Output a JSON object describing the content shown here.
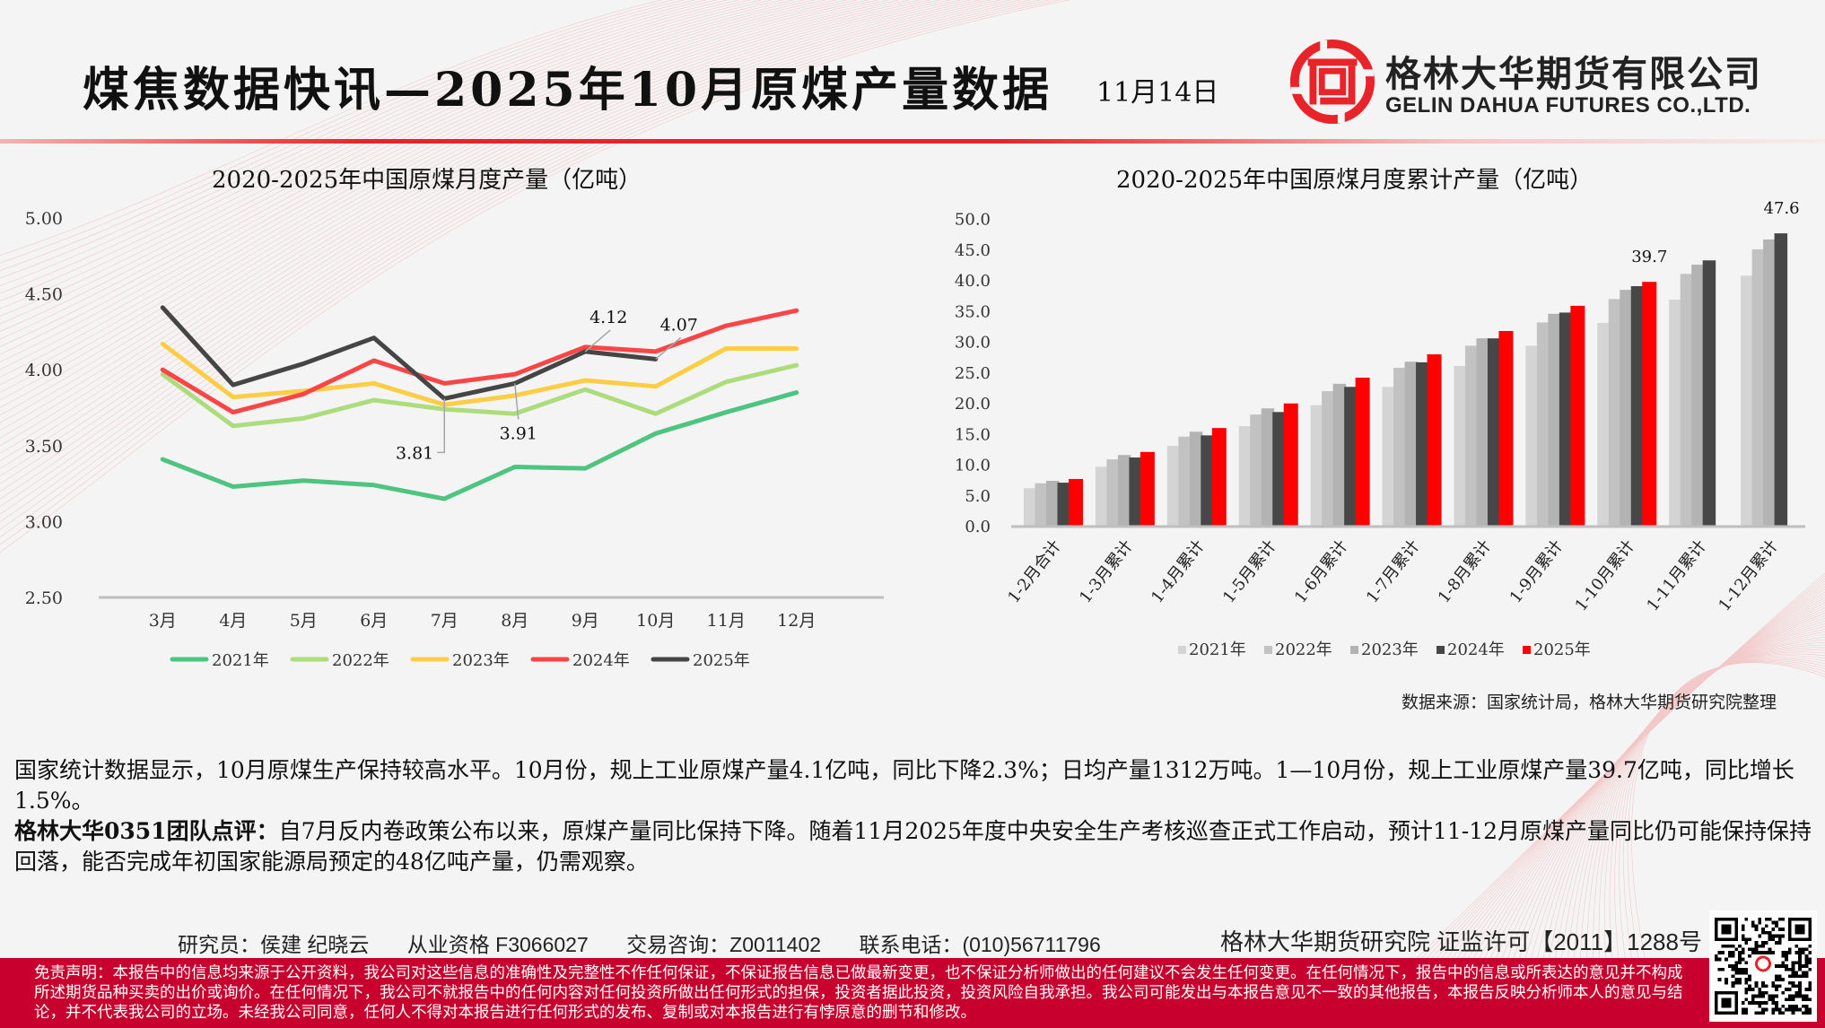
{
  "header": {
    "title": "煤焦数据快讯—2025年10月原煤产量数据",
    "date": "11月14日",
    "company_cn": "格林大华期货有限公司",
    "company_en": "GELIN DAHUA FUTURES CO.,LTD.",
    "brand_color": "#e8232a"
  },
  "chart_data": [
    {
      "type": "line",
      "title": "2020-2025年中国原煤月度产量（亿吨）",
      "xlabel": "",
      "ylabel": "",
      "ylim": [
        2.5,
        5.0
      ],
      "yticks": [
        "5.00",
        "4.50",
        "4.00",
        "3.50",
        "3.00",
        "2.50"
      ],
      "ytick_values": [
        5.0,
        4.5,
        4.0,
        3.5,
        3.0,
        2.5
      ],
      "categories": [
        "3月",
        "4月",
        "5月",
        "6月",
        "7月",
        "8月",
        "9月",
        "10月",
        "11月",
        "12月"
      ],
      "legend_position": "bottom",
      "grid": false,
      "series": [
        {
          "name": "2021年",
          "color": "#4dc47f",
          "values": [
            3.41,
            3.23,
            3.27,
            3.24,
            3.15,
            3.36,
            3.35,
            3.58,
            3.72,
            3.85
          ]
        },
        {
          "name": "2022年",
          "color": "#addc7c",
          "values": [
            3.97,
            3.63,
            3.68,
            3.8,
            3.74,
            3.71,
            3.87,
            3.71,
            3.92,
            4.03
          ]
        },
        {
          "name": "2023年",
          "color": "#fdcd46",
          "values": [
            4.17,
            3.82,
            3.86,
            3.91,
            3.77,
            3.83,
            3.93,
            3.89,
            4.14,
            4.14
          ]
        },
        {
          "name": "2024年",
          "color": "#f94545",
          "values": [
            4.0,
            3.72,
            3.84,
            4.06,
            3.91,
            3.97,
            4.15,
            4.12,
            4.29,
            4.39
          ]
        },
        {
          "name": "2025年",
          "color": "#454545",
          "values": [
            4.41,
            3.9,
            4.04,
            4.21,
            3.81,
            3.91,
            4.12,
            4.07,
            null,
            null
          ]
        }
      ],
      "annotations": [
        {
          "series": "2025年",
          "category": "7月",
          "text": "3.81"
        },
        {
          "series": "2025年",
          "category": "8月",
          "text": "3.91"
        },
        {
          "series": "2025年",
          "category": "9月",
          "text": "4.12"
        },
        {
          "series": "2025年",
          "category": "10月",
          "text": "4.07"
        }
      ]
    },
    {
      "type": "bar",
      "title": "2020-2025年中国原煤月度累计产量（亿吨）",
      "xlabel": "",
      "ylabel": "",
      "ylim": [
        0,
        50
      ],
      "yticks": [
        "50.0",
        "45.0",
        "40.0",
        "35.0",
        "30.0",
        "25.0",
        "20.0",
        "15.0",
        "10.0",
        "5.0",
        "0.0"
      ],
      "ytick_values": [
        50,
        45,
        40,
        35,
        30,
        25,
        20,
        15,
        10,
        5,
        0
      ],
      "categories": [
        "1-2月合计",
        "1-3月累计",
        "1-4月累计",
        "1-5月累计",
        "1-6月累计",
        "1-7月累计",
        "1-8月累计",
        "1-9月累计",
        "1-10月累计",
        "1-11月累计",
        "1-12月累计"
      ],
      "legend_position": "bottom",
      "grid": false,
      "series": [
        {
          "name": "2021年",
          "color": "#d4d4d4",
          "values": [
            6.1,
            9.6,
            13.0,
            16.2,
            19.6,
            22.6,
            26.0,
            29.3,
            33.0,
            36.8,
            40.7
          ]
        },
        {
          "name": "2022年",
          "color": "#c2c2c2",
          "values": [
            6.9,
            10.8,
            14.5,
            18.1,
            21.9,
            25.7,
            29.3,
            33.1,
            36.9,
            41.0,
            45.0
          ]
        },
        {
          "name": "2023年",
          "color": "#b3b3b3",
          "values": [
            7.3,
            11.5,
            15.3,
            19.1,
            23.1,
            26.7,
            30.5,
            34.5,
            38.4,
            42.5,
            46.6
          ]
        },
        {
          "name": "2024年",
          "color": "#474747",
          "values": [
            7.0,
            11.1,
            14.7,
            18.5,
            22.6,
            26.6,
            30.5,
            34.7,
            39.0,
            43.2,
            47.6
          ]
        },
        {
          "name": "2025年",
          "color": "#ff0000",
          "values": [
            7.6,
            12.0,
            15.9,
            19.9,
            24.1,
            27.9,
            31.7,
            35.8,
            39.7,
            null,
            null
          ]
        }
      ],
      "annotations": [
        {
          "series": "2025年",
          "category": "1-10月累计",
          "text": "39.7"
        },
        {
          "series": "2024年",
          "category": "1-12月累计",
          "text": "47.6"
        }
      ]
    }
  ],
  "source": "数据来源：国家统计局，格林大华期货研究院整理",
  "summary": {
    "para1": "国家统计数据显示，10月原煤生产保持较高水平。10月份，规上工业原煤产量4.1亿吨，同比下降2.3%；日均产量1312万吨。1—10月份，规上工业原煤产量39.7亿吨，同比增长1.5%。",
    "comment_label": "格林大华0351团队点评：",
    "comment": "自7月反内卷政策公布以来，原煤产量同比保持下降。随着11月2025年度中央安全生产考核巡查正式工作启动，预计11-12月原煤产量同比仍可能保持保持回落，能否完成年初国家能源局预定的48亿吨产量，仍需观察。"
  },
  "footer": {
    "researchers": "研究员：侯建 纪晓云",
    "qualification": "从业资格 F3066027",
    "consulting": "交易咨询：Z0011402",
    "phone": "联系电话：(010)56711796",
    "institute": "格林大华期货研究院  证监许可【2011】1288号",
    "disclaimer": "免责声明：本报告中的信息均来源于公开资料，我公司对这些信息的准确性及完整性不作任何保证，不保证报告信息已做最新变更，也不保证分析师做出的任何建议不会发生任何变更。在任何情况下，报告中的信息或所表达的意见并不构成所述期货品种买卖的出价或询价。在任何情况下，我公司不就报告中的任何内容对任何投资所做出任何形式的担保，投资者据此投资，投资风险自我承担。我公司可能发出与本报告意见不一致的其他报告，本报告反映分析师本人的意见与结论，并不代表我公司的立场。未经我公司同意，任何人不得对本报告进行任何形式的发布、复制或对本报告进行有悖原意的删节和修改。",
    "disclaimer_bg": "#c8002d"
  }
}
